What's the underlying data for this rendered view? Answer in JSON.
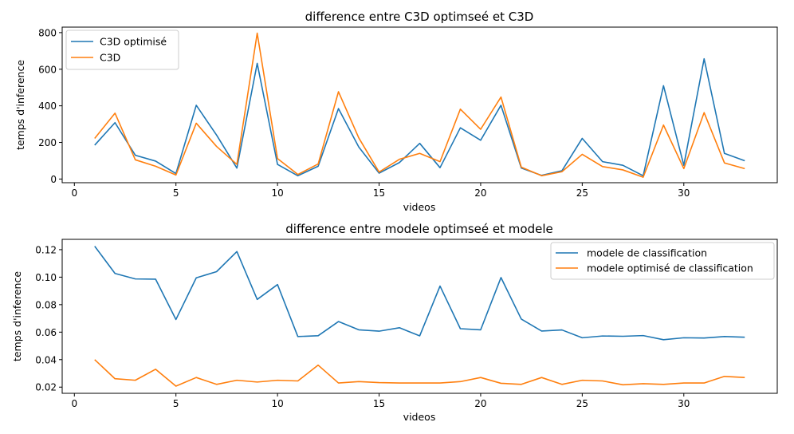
{
  "chart_data": [
    {
      "type": "line",
      "title": "difference entre C3D optimseé et C3D",
      "xlabel": "videos",
      "ylabel": "temps d'inference",
      "xlim": [
        -0.6,
        34.6
      ],
      "ylim": [
        -20,
        830
      ],
      "xticks": [
        0,
        5,
        10,
        15,
        20,
        25,
        30
      ],
      "yticks": [
        0,
        200,
        400,
        600,
        800
      ],
      "legend_position": "upper left",
      "grid": false,
      "x": [
        1,
        2,
        3,
        4,
        5,
        6,
        7,
        8,
        9,
        10,
        11,
        12,
        13,
        14,
        15,
        16,
        17,
        18,
        19,
        20,
        21,
        22,
        23,
        24,
        25,
        26,
        27,
        28,
        29,
        30,
        31,
        32,
        33
      ],
      "series": [
        {
          "name": "C3D optimisé",
          "color": "#1f77b4",
          "values": [
            185,
            308,
            130,
            98,
            30,
            403,
            240,
            60,
            632,
            80,
            18,
            70,
            385,
            175,
            32,
            90,
            195,
            62,
            280,
            212,
            403,
            60,
            20,
            45,
            222,
            95,
            75,
            18,
            510,
            75,
            657,
            140,
            100
          ]
        },
        {
          "name": "C3D",
          "color": "#ff7f0e",
          "values": [
            222,
            360,
            105,
            70,
            22,
            305,
            178,
            80,
            797,
            112,
            25,
            82,
            477,
            225,
            38,
            108,
            140,
            95,
            382,
            272,
            448,
            65,
            18,
            40,
            135,
            68,
            50,
            10,
            295,
            57,
            363,
            88,
            57
          ]
        }
      ]
    },
    {
      "type": "line",
      "title": "difference entre modele optimseé et modele",
      "xlabel": "videos",
      "ylabel": "temps d'inference",
      "xlim": [
        -0.6,
        34.6
      ],
      "ylim": [
        0.0155,
        0.1275
      ],
      "xticks": [
        0,
        5,
        10,
        15,
        20,
        25,
        30
      ],
      "yticks": [
        0.02,
        0.04,
        0.06,
        0.08,
        0.1,
        0.12
      ],
      "ytick_labels": [
        "0.02",
        "0.04",
        "0.06",
        "0.08",
        "0.10",
        "0.12"
      ],
      "legend_position": "upper right",
      "grid": false,
      "x": [
        1,
        2,
        3,
        4,
        5,
        6,
        7,
        8,
        9,
        10,
        11,
        12,
        13,
        14,
        15,
        16,
        17,
        18,
        19,
        20,
        21,
        22,
        23,
        24,
        25,
        26,
        27,
        28,
        29,
        30,
        31,
        32,
        33
      ],
      "series": [
        {
          "name": "modele de classification",
          "color": "#1f77b4",
          "values": [
            0.1225,
            0.1027,
            0.0987,
            0.0985,
            0.0692,
            0.0995,
            0.104,
            0.1186,
            0.0838,
            0.0946,
            0.0568,
            0.0574,
            0.0677,
            0.0617,
            0.0607,
            0.0632,
            0.0573,
            0.0935,
            0.0625,
            0.0617,
            0.0997,
            0.0695,
            0.0608,
            0.0616,
            0.0559,
            0.0572,
            0.057,
            0.0575,
            0.0545,
            0.0559,
            0.0557,
            0.0568,
            0.0563
          ]
        },
        {
          "name": "modele optimisé de classification",
          "color": "#ff7f0e",
          "values": [
            0.04,
            0.0261,
            0.025,
            0.033,
            0.0207,
            0.027,
            0.022,
            0.025,
            0.0237,
            0.025,
            0.0245,
            0.036,
            0.023,
            0.024,
            0.0233,
            0.023,
            0.023,
            0.023,
            0.024,
            0.027,
            0.0228,
            0.022,
            0.027,
            0.022,
            0.025,
            0.0245,
            0.0217,
            0.0225,
            0.022,
            0.023,
            0.023,
            0.0278,
            0.027
          ]
        }
      ]
    }
  ]
}
